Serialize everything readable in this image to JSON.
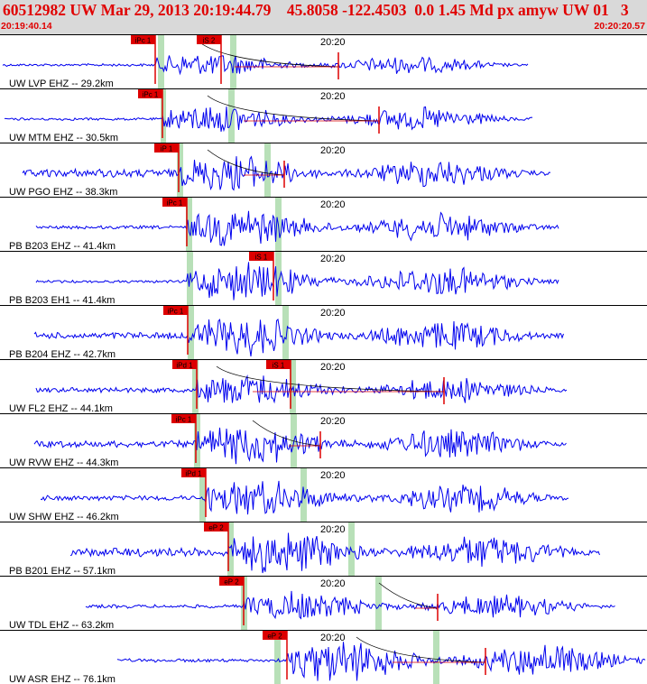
{
  "header": {
    "title": "60512982 UW Mar 29, 2013 20:19:44.79    45.8058 -122.4503  0.0 1.45 Md px amyw UW 01   3",
    "start_time": "20:19:40.14",
    "end_time": "20:20:20.57"
  },
  "minute_label": "20:20",
  "colors": {
    "trace": "#0000ee",
    "pick": "#dd0000",
    "coda": "#000000",
    "window": "#b8e0b8",
    "header_bg": "#d9d9d9",
    "header_text": "#e00000"
  },
  "traces": [
    {
      "label": "UW LVP EHZ -- 29.2km",
      "picks": [
        "iPc 1",
        "iS 2"
      ]
    },
    {
      "label": "UW MTM EHZ -- 30.5km",
      "picks": [
        "iPc 1"
      ]
    },
    {
      "label": "UW PGO EHZ -- 38.3km",
      "picks": [
        "iP 1"
      ]
    },
    {
      "label": "PB B203 EHZ -- 41.4km",
      "picks": [
        "iPc 1"
      ]
    },
    {
      "label": "PB B203 EH1 -- 41.4km",
      "picks": [
        "iS 1"
      ]
    },
    {
      "label": "PB B204 EHZ -- 42.7km",
      "picks": [
        "iPc 1"
      ]
    },
    {
      "label": "UW FL2 EHZ -- 44.1km",
      "picks": [
        "iPd 1",
        "iS 1"
      ]
    },
    {
      "label": "UW RVW EHZ -- 44.3km",
      "picks": [
        "iPc 1"
      ]
    },
    {
      "label": "UW SHW EHZ -- 46.2km",
      "picks": [
        "iPd 1"
      ]
    },
    {
      "label": "PB B201 EHZ -- 57.1km",
      "picks": [
        "eP 2"
      ]
    },
    {
      "label": "UW TDL EHZ -- 63.2km",
      "picks": [
        "eP 2"
      ]
    },
    {
      "label": "UW ASR EHZ -- 76.1km",
      "picks": [
        "eP 2"
      ]
    }
  ]
}
